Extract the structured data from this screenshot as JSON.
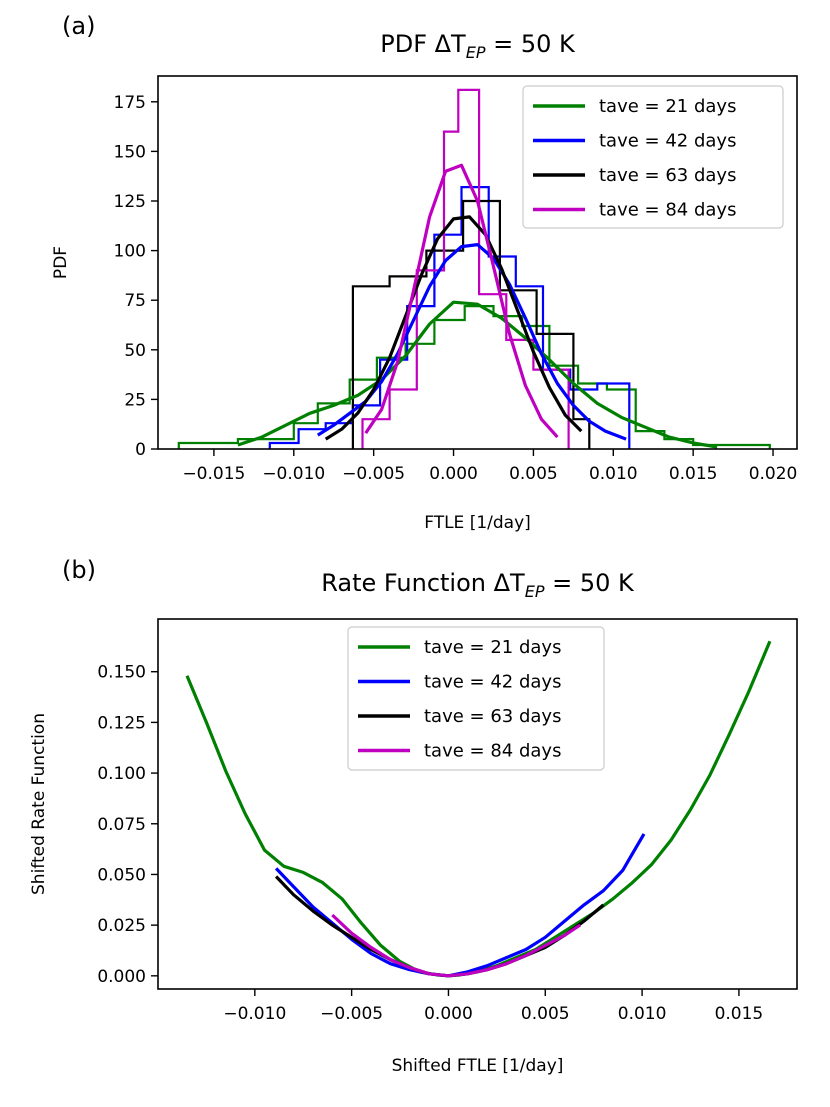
{
  "chart_data": [
    {
      "panel_label": "(a)",
      "type": "histogram+line",
      "title": "PDF ΔT",
      "title_sub": "EP",
      "title_suffix": " = 50 K",
      "xlabel": "FTLE [1/day]",
      "ylabel": "PDF",
      "xlim": [
        -0.0185,
        0.0215
      ],
      "ylim": [
        0,
        188
      ],
      "xticks": [
        -0.015,
        -0.01,
        -0.005,
        0.0,
        0.005,
        0.01,
        0.015,
        0.02
      ],
      "xtick_labels": [
        "−0.015",
        "−0.010",
        "−0.005",
        "0.000",
        "0.005",
        "0.010",
        "0.015",
        "0.020"
      ],
      "yticks": [
        0,
        25,
        50,
        75,
        100,
        125,
        150,
        175
      ],
      "ytick_labels": [
        "0",
        "25",
        "50",
        "75",
        "100",
        "125",
        "150",
        "175"
      ],
      "legend_position": "top-right",
      "series": [
        {
          "name": "tave = 21 days",
          "color": "#008000",
          "hist_edges": [
            -0.0172,
            -0.0135,
            -0.01,
            -0.0085,
            -0.0065,
            -0.0048,
            -0.003,
            -0.0012,
            0.0007,
            0.0025,
            0.0043,
            0.006,
            0.0078,
            0.0096,
            0.0114,
            0.0132,
            0.015,
            0.0198
          ],
          "hist_values": [
            3,
            5,
            13,
            23,
            35,
            46,
            53,
            65,
            72,
            67,
            62,
            42,
            33,
            30,
            9,
            5,
            2
          ],
          "curve_x": [
            -0.0135,
            -0.012,
            -0.0105,
            -0.009,
            -0.0075,
            -0.006,
            -0.0045,
            -0.003,
            -0.0015,
            0.0,
            0.0015,
            0.003,
            0.0045,
            0.006,
            0.0075,
            0.009,
            0.0105,
            0.012,
            0.0135,
            0.015,
            0.0165
          ],
          "curve_y": [
            2,
            6,
            12,
            18,
            22,
            27,
            35,
            47,
            63,
            74,
            73,
            66,
            56,
            45,
            33,
            23,
            16,
            11,
            6,
            3,
            1
          ]
        },
        {
          "name": "tave = 42 days",
          "color": "#0000ff",
          "hist_edges": [
            -0.0115,
            -0.0097,
            -0.008,
            -0.0063,
            -0.0046,
            -0.0029,
            -0.0012,
            0.0005,
            0.0022,
            0.0039,
            0.0056,
            0.0073,
            0.009,
            0.011
          ],
          "hist_values": [
            3,
            10,
            13,
            22,
            45,
            72,
            108,
            132,
            97,
            82,
            40,
            30,
            33
          ],
          "curve_x": [
            -0.0085,
            -0.0075,
            -0.0065,
            -0.0055,
            -0.0045,
            -0.0035,
            -0.0025,
            -0.0015,
            -0.0005,
            0.0005,
            0.0015,
            0.0025,
            0.0035,
            0.0045,
            0.0055,
            0.0065,
            0.0075,
            0.0085,
            0.0095,
            0.0108
          ],
          "curve_y": [
            7,
            12,
            18,
            24,
            34,
            48,
            65,
            82,
            95,
            102,
            103,
            96,
            83,
            66,
            48,
            33,
            22,
            14,
            9,
            5
          ]
        },
        {
          "name": "tave = 63 days",
          "color": "#000000",
          "hist_edges": [
            -0.0063,
            -0.004,
            -0.0017,
            0.0006,
            0.0029,
            0.0052,
            0.0075,
            0.0085
          ],
          "hist_values": [
            82,
            87,
            100,
            125,
            80,
            58,
            15
          ],
          "curve_x": [
            -0.008,
            -0.007,
            -0.006,
            -0.005,
            -0.004,
            -0.003,
            -0.002,
            -0.001,
            0.0,
            0.001,
            0.002,
            0.003,
            0.004,
            0.005,
            0.006,
            0.007,
            0.008
          ],
          "curve_y": [
            5,
            10,
            18,
            30,
            46,
            67,
            88,
            106,
            116,
            117,
            108,
            91,
            70,
            49,
            31,
            17,
            9
          ]
        },
        {
          "name": "tave = 84 days",
          "color": "#c000c0",
          "hist_edges": [
            -0.0057,
            -0.004,
            -0.0023,
            -0.0006,
            0.0003,
            0.0016,
            0.0033,
            0.005,
            0.0072
          ],
          "hist_values": [
            15,
            30,
            90,
            160,
            181,
            78,
            55,
            40
          ],
          "curve_x": [
            -0.0055,
            -0.0045,
            -0.0035,
            -0.0025,
            -0.0015,
            -0.0005,
            0.0005,
            0.0015,
            0.0025,
            0.0035,
            0.0045,
            0.0055,
            0.0065
          ],
          "curve_y": [
            8,
            20,
            44,
            80,
            117,
            140,
            143,
            125,
            92,
            58,
            32,
            15,
            6
          ]
        }
      ]
    },
    {
      "panel_label": "(b)",
      "type": "line",
      "title": "Rate Function ΔT",
      "title_sub": "EP",
      "title_suffix": " = 50 K",
      "xlabel": "Shifted FTLE [1/day]",
      "ylabel": "Shifted Rate Function",
      "xlim": [
        -0.015,
        0.018
      ],
      "ylim": [
        -0.0065,
        0.176
      ],
      "xticks": [
        -0.01,
        -0.005,
        0.0,
        0.005,
        0.01,
        0.015
      ],
      "xtick_labels": [
        "−0.010",
        "−0.005",
        "0.000",
        "0.005",
        "0.010",
        "0.015"
      ],
      "yticks": [
        0.0,
        0.025,
        0.05,
        0.075,
        0.1,
        0.125,
        0.15
      ],
      "ytick_labels": [
        "0.000",
        "0.025",
        "0.050",
        "0.075",
        "0.100",
        "0.125",
        "0.150"
      ],
      "legend_position": "top-center",
      "series": [
        {
          "name": "tave = 21 days",
          "color": "#008000",
          "x": [
            -0.0135,
            -0.0125,
            -0.0115,
            -0.0105,
            -0.0095,
            -0.0085,
            -0.0075,
            -0.0065,
            -0.0055,
            -0.0045,
            -0.0035,
            -0.0025,
            -0.0015,
            -0.0005,
            0.0,
            0.0005,
            0.0015,
            0.0025,
            0.0035,
            0.0045,
            0.0055,
            0.0065,
            0.0075,
            0.0085,
            0.0095,
            0.0105,
            0.0115,
            0.0125,
            0.0135,
            0.0145,
            0.0155,
            0.0166
          ],
          "y": [
            0.148,
            0.125,
            0.101,
            0.08,
            0.062,
            0.054,
            0.051,
            0.046,
            0.038,
            0.026,
            0.015,
            0.007,
            0.002,
            0.0003,
            0.0,
            0.0003,
            0.002,
            0.005,
            0.009,
            0.013,
            0.019,
            0.025,
            0.031,
            0.038,
            0.046,
            0.055,
            0.067,
            0.082,
            0.099,
            0.119,
            0.14,
            0.165
          ]
        },
        {
          "name": "tave = 42 days",
          "color": "#0000ff",
          "x": [
            -0.0089,
            -0.008,
            -0.007,
            -0.006,
            -0.005,
            -0.004,
            -0.003,
            -0.002,
            -0.001,
            0.0,
            0.001,
            0.002,
            0.003,
            0.004,
            0.005,
            0.006,
            0.007,
            0.008,
            0.009,
            0.0101
          ],
          "y": [
            0.053,
            0.044,
            0.034,
            0.026,
            0.018,
            0.011,
            0.006,
            0.003,
            0.001,
            0.0,
            0.002,
            0.005,
            0.009,
            0.013,
            0.019,
            0.027,
            0.035,
            0.042,
            0.052,
            0.07
          ]
        },
        {
          "name": "tave = 63 days",
          "color": "#000000",
          "x": [
            -0.0089,
            -0.008,
            -0.007,
            -0.006,
            -0.005,
            -0.004,
            -0.003,
            -0.002,
            -0.001,
            0.0,
            0.001,
            0.002,
            0.003,
            0.004,
            0.005,
            0.006,
            0.007,
            0.008
          ],
          "y": [
            0.049,
            0.04,
            0.032,
            0.025,
            0.019,
            0.013,
            0.008,
            0.004,
            0.001,
            0.0,
            0.001,
            0.003,
            0.006,
            0.01,
            0.014,
            0.02,
            0.027,
            0.035
          ]
        },
        {
          "name": "tave = 84 days",
          "color": "#c000c0",
          "x": [
            -0.006,
            -0.005,
            -0.004,
            -0.003,
            -0.002,
            -0.001,
            0.0,
            0.001,
            0.002,
            0.003,
            0.004,
            0.005,
            0.006,
            0.0068
          ],
          "y": [
            0.03,
            0.021,
            0.014,
            0.008,
            0.004,
            0.001,
            0.0,
            0.001,
            0.003,
            0.006,
            0.01,
            0.015,
            0.02,
            0.025
          ]
        }
      ]
    }
  ]
}
